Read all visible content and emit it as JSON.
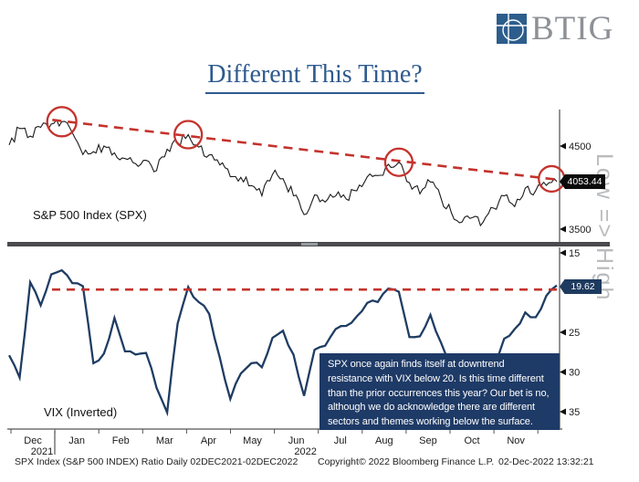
{
  "logo": {
    "text": "BTIG",
    "square_color": "#2c5d8c"
  },
  "title": "Different This Time?",
  "colors": {
    "accent_red": "#c4332d",
    "navy": "#1e3a66",
    "spx_line": "#1a1a1a",
    "vix_line": "#1f3d63",
    "title_blue": "#2e5a8e",
    "hint_gray": "#b9bbbd"
  },
  "chart_data": [
    {
      "type": "line",
      "title": "S&P 500 Index (SPX)",
      "x_range": "weekly, 02DEC2021 - 02DEC2022",
      "values": [
        4513,
        4712,
        4620,
        4725,
        4766,
        4793,
        4663,
        4398,
        4432,
        4501,
        4419,
        4349,
        4289,
        4329,
        4204,
        4463,
        4543,
        4637,
        4488,
        4393,
        4272,
        4132,
        4123,
        4024,
        3901,
        4158,
        4109,
        3901,
        3675,
        3912,
        3825,
        3899,
        3863,
        3962,
        4130,
        4145,
        4280,
        4305,
        4058,
        3924,
        4067,
        3873,
        3693,
        3586,
        3640,
        3583,
        3753,
        3901,
        3771,
        3993,
        3965,
        4026,
        4072
      ],
      "ylim": [
        3400,
        4900
      ],
      "yticks": [
        4500,
        3500
      ],
      "last_price_label": "4053.44",
      "trendline": {
        "from_i": 4.1,
        "from_v": 4815,
        "to_i": 52.4,
        "to_v": 4090,
        "style": "dashed-red"
      },
      "circles": [
        {
          "i": 5,
          "v": 4793,
          "r": 16
        },
        {
          "i": 17,
          "v": 4637,
          "r": 15
        },
        {
          "i": 37,
          "v": 4305,
          "r": 15
        },
        {
          "i": 51.5,
          "v": 4105,
          "r": 14
        }
      ],
      "grid": false,
      "legend": "none"
    },
    {
      "type": "line",
      "title": "VIX (Inverted)",
      "x_range": "weekly, 02DEC2021 - 02DEC2022",
      "values": [
        27.9,
        30.7,
        18.7,
        21.6,
        17.7,
        17.2,
        18.8,
        19.2,
        28.9,
        27.7,
        23.2,
        27.4,
        27.8,
        27.6,
        32.0,
        35.1,
        23.9,
        19.3,
        21.2,
        22.7,
        28.2,
        33.4,
        30.2,
        28.9,
        29.4,
        25.7,
        24.8,
        27.8,
        33.0,
        27.2,
        26.7,
        24.6,
        24.2,
        23.0,
        21.3,
        21.2,
        19.5,
        19.9,
        25.6,
        25.5,
        22.8,
        26.3,
        29.9,
        31.6,
        31.4,
        33.6,
        29.7,
        25.8,
        24.6,
        22.5,
        23.1,
        20.4,
        19.1
      ],
      "ylim": [
        13.5,
        37
      ],
      "inverted_axis": true,
      "yticks": [
        15,
        25,
        30,
        35
      ],
      "hline": {
        "v": 19.62,
        "style": "dashed-red"
      },
      "last_price_label": "19.62",
      "axis_hint": "Low => High",
      "grid": false,
      "legend": "none"
    }
  ],
  "xaxis": {
    "months": [
      "Dec",
      "Jan",
      "Feb",
      "Mar",
      "Apr",
      "May",
      "Jun",
      "Jul",
      "Aug",
      "Sep",
      "Oct",
      "Nov"
    ],
    "years": [
      {
        "label": "2021",
        "month_index": 0
      },
      {
        "label": "2022",
        "month_index": 6
      }
    ]
  },
  "annotation": {
    "text": "SPX once again finds itself at downtrend resistance with VIX below 20. Is this time different than the prior occurrences this year? Our bet is no, although we do acknowledge there are different sectors and themes working below the surface."
  },
  "footer": {
    "left": "SPX Index (S&P 500 INDEX) Ratio  Daily 02DEC2021-02DEC2022",
    "center": "Copyright© 2022 Bloomberg Finance L.P.",
    "right": "02-Dec-2022 13:32:21"
  }
}
